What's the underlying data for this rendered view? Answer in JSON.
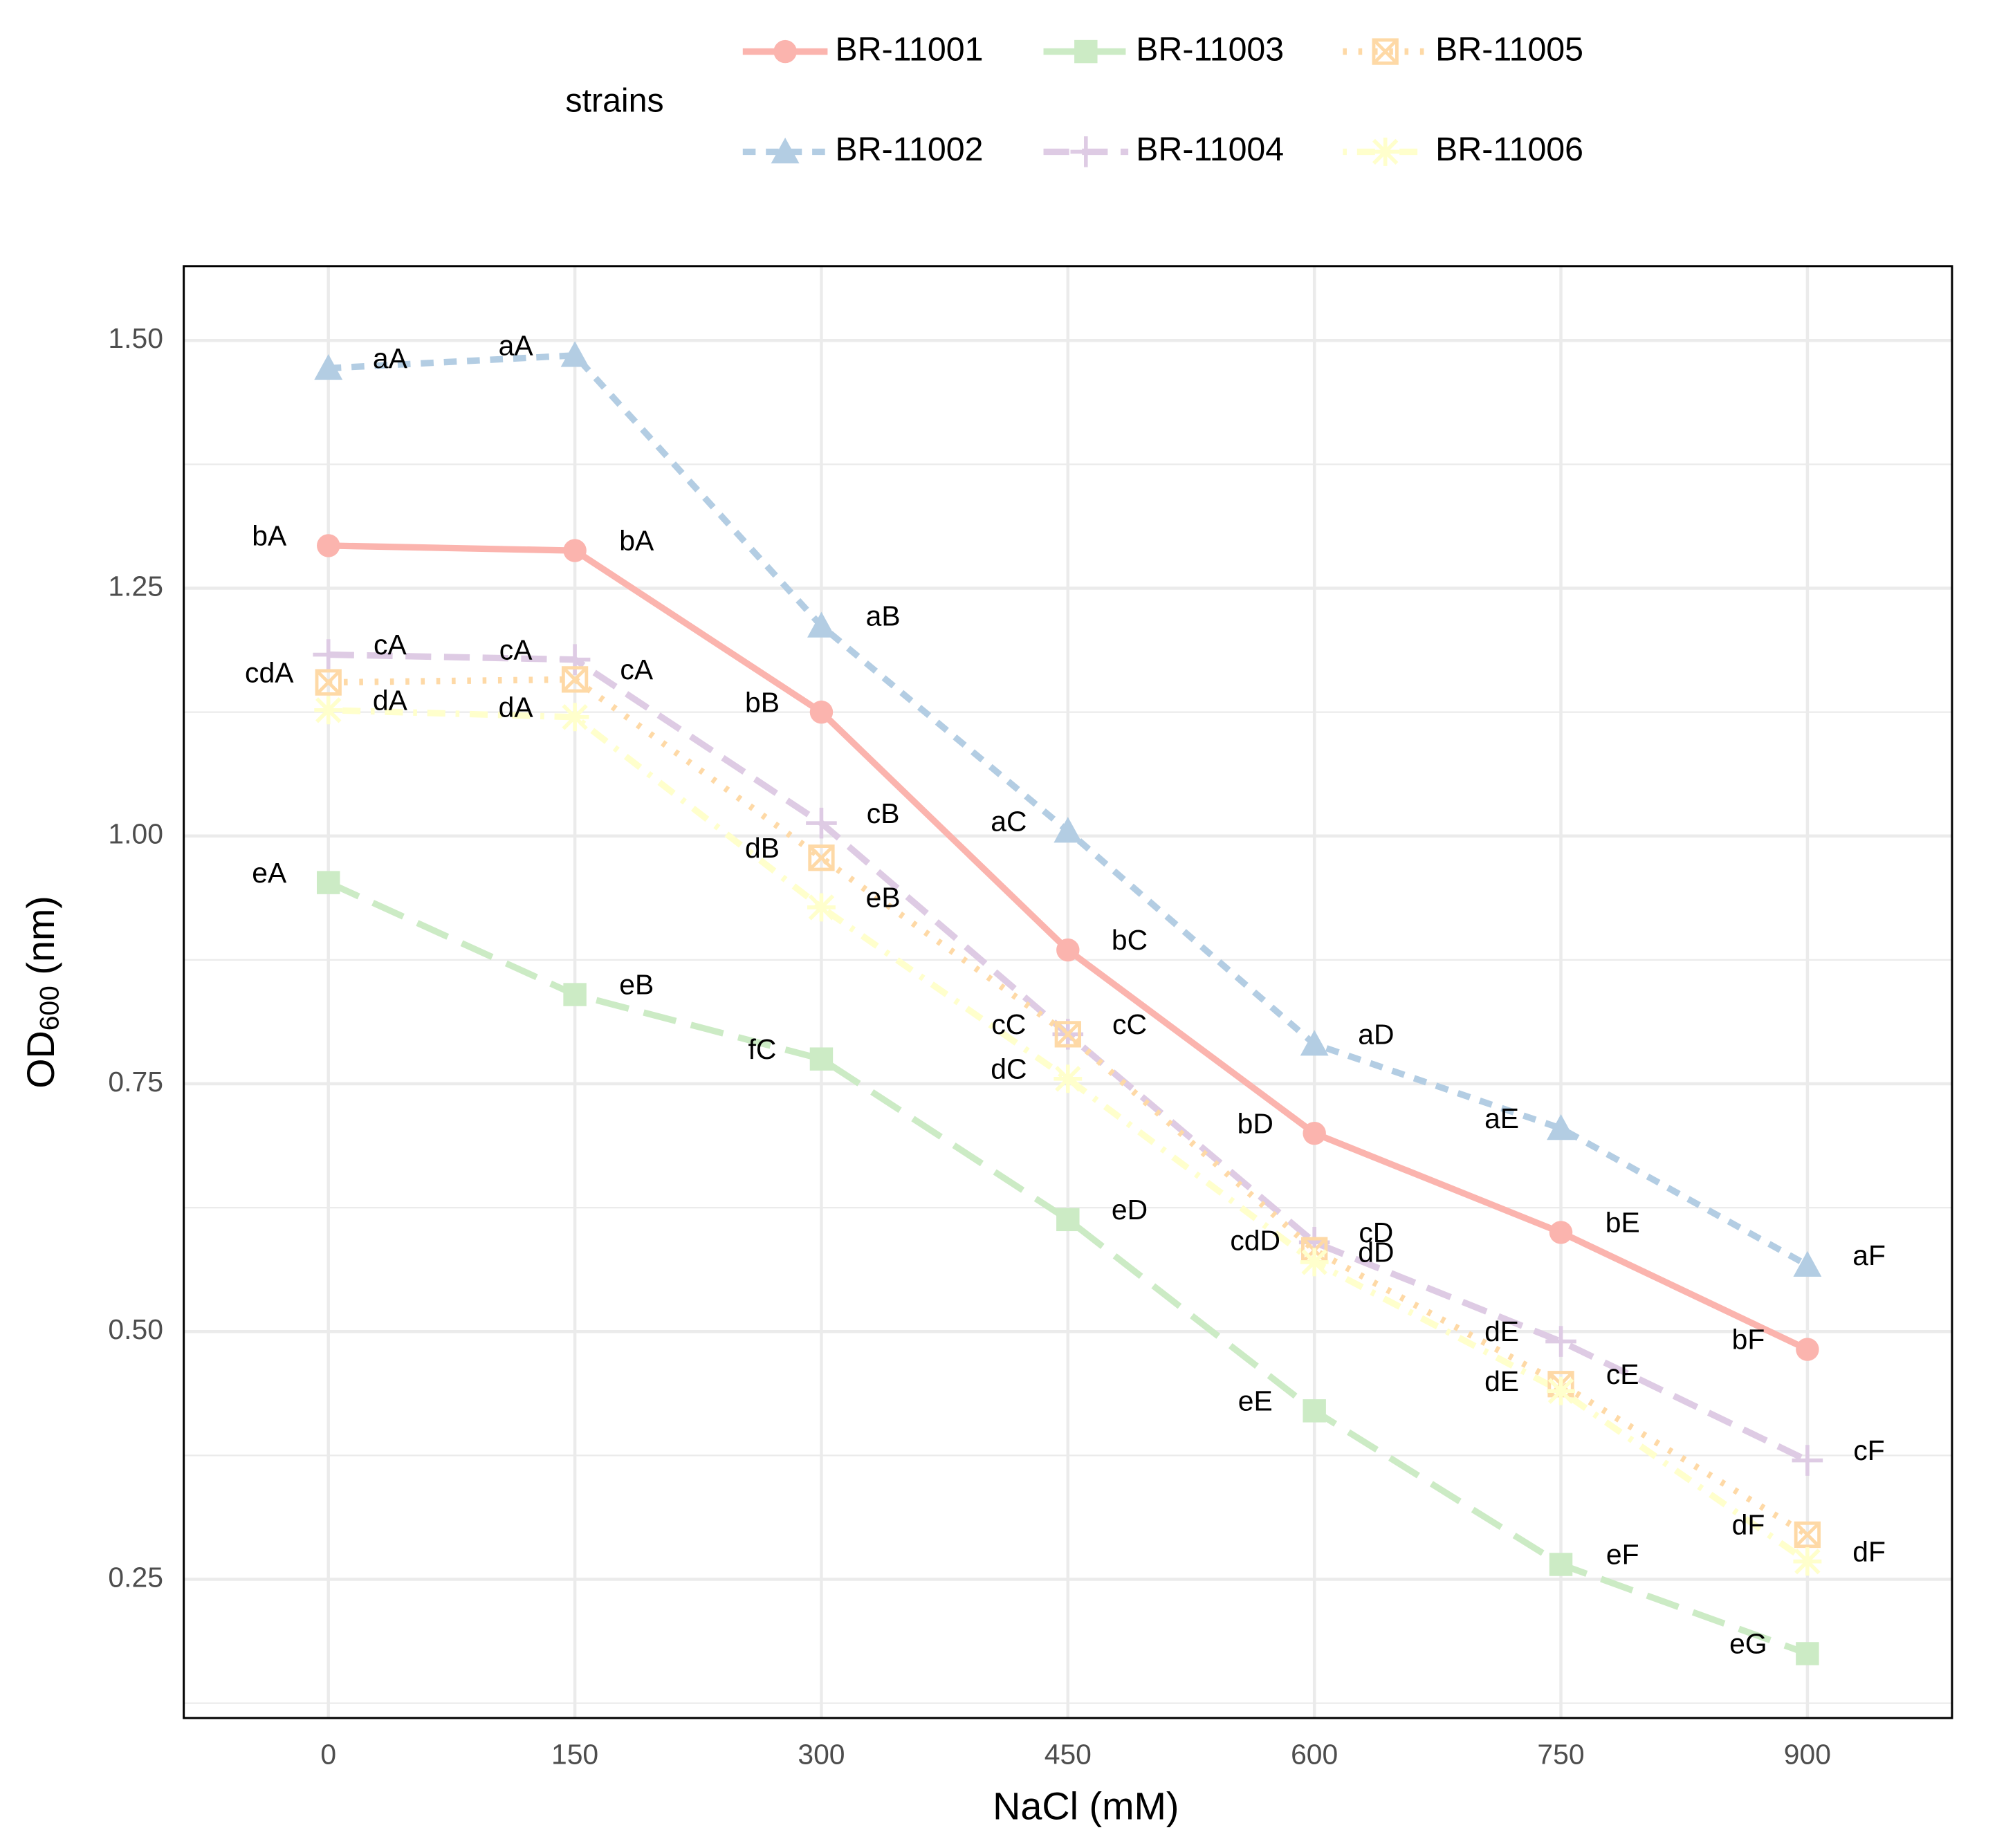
{
  "chart_data": {
    "type": "line",
    "xlabel": "NaCl (mM)",
    "ylabel": {
      "main": "OD",
      "sub": "600",
      "unit": " (nm)"
    },
    "legend_title": "strains",
    "legend_position": "top",
    "grid": true,
    "x": [
      0,
      150,
      300,
      450,
      600,
      750,
      900
    ],
    "xlim": [
      -88,
      988
    ],
    "ylim": [
      0.11,
      1.575
    ],
    "xticks": [
      0,
      150,
      300,
      450,
      600,
      750,
      900
    ],
    "yticks": [
      {
        "value": 0.25,
        "label": "0.25"
      },
      {
        "value": 0.5,
        "label": "0.50"
      },
      {
        "value": 0.75,
        "label": "0.75"
      },
      {
        "value": 1.0,
        "label": "1.00"
      },
      {
        "value": 1.25,
        "label": "1.25"
      },
      {
        "value": 1.5,
        "label": "1.50"
      }
    ],
    "y_minor_ticks": [
      0.125,
      0.375,
      0.625,
      0.875,
      1.125,
      1.375
    ],
    "series": [
      {
        "name": "BR-11001",
        "color": "#FBB4AE",
        "linetype": "solid",
        "shape": "circle",
        "values": [
          1.293,
          1.288,
          1.125,
          0.885,
          0.7,
          0.6,
          0.482
        ],
        "point_labels": [
          "bA",
          "bA",
          "bB",
          "bC",
          "bD",
          "bE",
          "bF"
        ]
      },
      {
        "name": "BR-11002",
        "color": "#B3CDE3",
        "linetype": "dashed",
        "shape": "triangle",
        "values": [
          1.472,
          1.485,
          1.212,
          1.005,
          0.79,
          0.705,
          0.567
        ],
        "point_labels": [
          "aA",
          "aA",
          "aB",
          "aC",
          "aD",
          "aE",
          "aF"
        ]
      },
      {
        "name": "BR-11003",
        "color": "#CCEBC5",
        "linetype": "longdash",
        "shape": "square",
        "values": [
          0.953,
          0.84,
          0.775,
          0.613,
          0.42,
          0.265,
          0.175
        ],
        "point_labels": [
          "eA",
          "eB",
          "fC",
          "eD",
          "eE",
          "eF",
          "eG"
        ]
      },
      {
        "name": "BR-11004",
        "color": "#DECBE4",
        "linetype": "longdash2",
        "shape": "plus",
        "values": [
          1.183,
          1.178,
          1.013,
          0.8,
          0.59,
          0.49,
          0.37
        ],
        "point_labels": [
          "cA",
          "cA",
          "cB",
          "cC",
          "cD",
          "dE",
          "cF"
        ]
      },
      {
        "name": "BR-11005",
        "color": "#FED9A6",
        "linetype": "dotted",
        "shape": "squarecross",
        "values": [
          1.155,
          1.158,
          0.978,
          0.8,
          0.582,
          0.447,
          0.295
        ],
        "point_labels": [
          "cdA",
          "cA",
          "dB",
          "cC",
          "cdD",
          "cE",
          "dF"
        ]
      },
      {
        "name": "BR-11006",
        "color": "#FFFFCC",
        "linetype": "dotdash",
        "shape": "asterisk",
        "values": [
          1.127,
          1.12,
          0.928,
          0.755,
          0.57,
          0.44,
          0.268
        ],
        "point_labels": [
          "dA",
          "dA",
          "eB",
          "dC",
          "dD",
          "dE",
          "dF"
        ]
      }
    ]
  }
}
